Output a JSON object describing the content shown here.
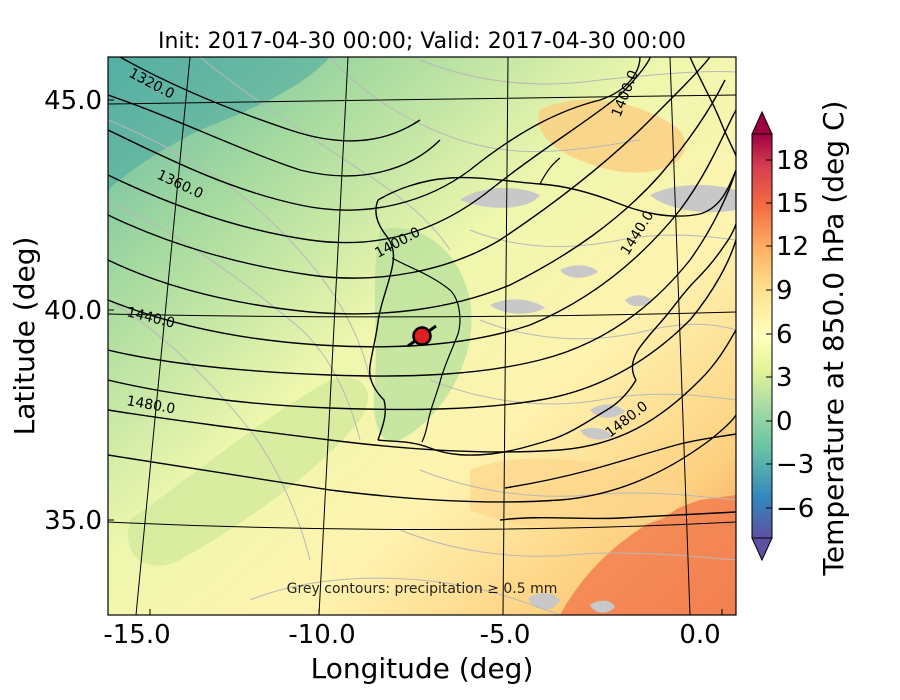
{
  "title": "Init: 2017-04-30 00:00; Valid: 2017-04-30 00:00",
  "x_axis": {
    "label": "Longitude (deg)",
    "ticks": [
      "-15.0",
      "-10.0",
      "-5.0",
      "0.0"
    ],
    "range": [
      -15.9,
      0.2
    ]
  },
  "y_axis": {
    "label": "Latitude (deg)",
    "ticks": [
      "45.0",
      "40.0",
      "35.0"
    ],
    "range": [
      32.5,
      46.1
    ]
  },
  "colorbar": {
    "label": "Temperature at 850.0 hPa (deg C)",
    "ticks": [
      "18",
      "15",
      "12",
      "9",
      "6",
      "3",
      "0",
      "−3",
      "−6"
    ],
    "range": [
      -8,
      20
    ],
    "extend": "both",
    "colormap": "Spectral_r",
    "colors": [
      "#5e4fa2",
      "#3d67b0",
      "#3288bd",
      "#4da7b0",
      "#66c2a5",
      "#8ed1a4",
      "#abdda4",
      "#cbe9a0",
      "#e6f598",
      "#f2f9aa",
      "#ffffbf",
      "#fee999",
      "#fee08b",
      "#fdc171",
      "#fdae61",
      "#f88d52",
      "#f46d43",
      "#e45a48",
      "#d53e4f",
      "#b81f48",
      "#9e0142"
    ]
  },
  "annotation": "Grey contours: precipitation ≥ 0.5 mm",
  "contour_labels": [
    "1320.0",
    "1360.0",
    "1400.0",
    "1400.0",
    "1440.0",
    "1440.0",
    "1480.0",
    "1480.0",
    "1400.0"
  ],
  "marker": {
    "lon": -7.6,
    "lat": 39.2,
    "color": "#e02020"
  },
  "graticule": {
    "lons": [
      -15,
      -10,
      -5,
      0
    ],
    "lats": [
      45,
      40,
      35
    ]
  },
  "chart_data": {
    "type": "heatmap",
    "title": "Init: 2017-04-30 00:00; Valid: 2017-04-30 00:00",
    "xlabel": "Longitude (deg)",
    "ylabel": "Latitude (deg)",
    "xlim": [
      -15.9,
      0.2
    ],
    "ylim": [
      32.5,
      46.1
    ],
    "grid": true,
    "field": "Temperature at 850.0 hPa (deg C)",
    "overlay": "geopotential height contours",
    "contour_levels": [
      1320,
      1360,
      1400,
      1440,
      1480
    ]
  }
}
